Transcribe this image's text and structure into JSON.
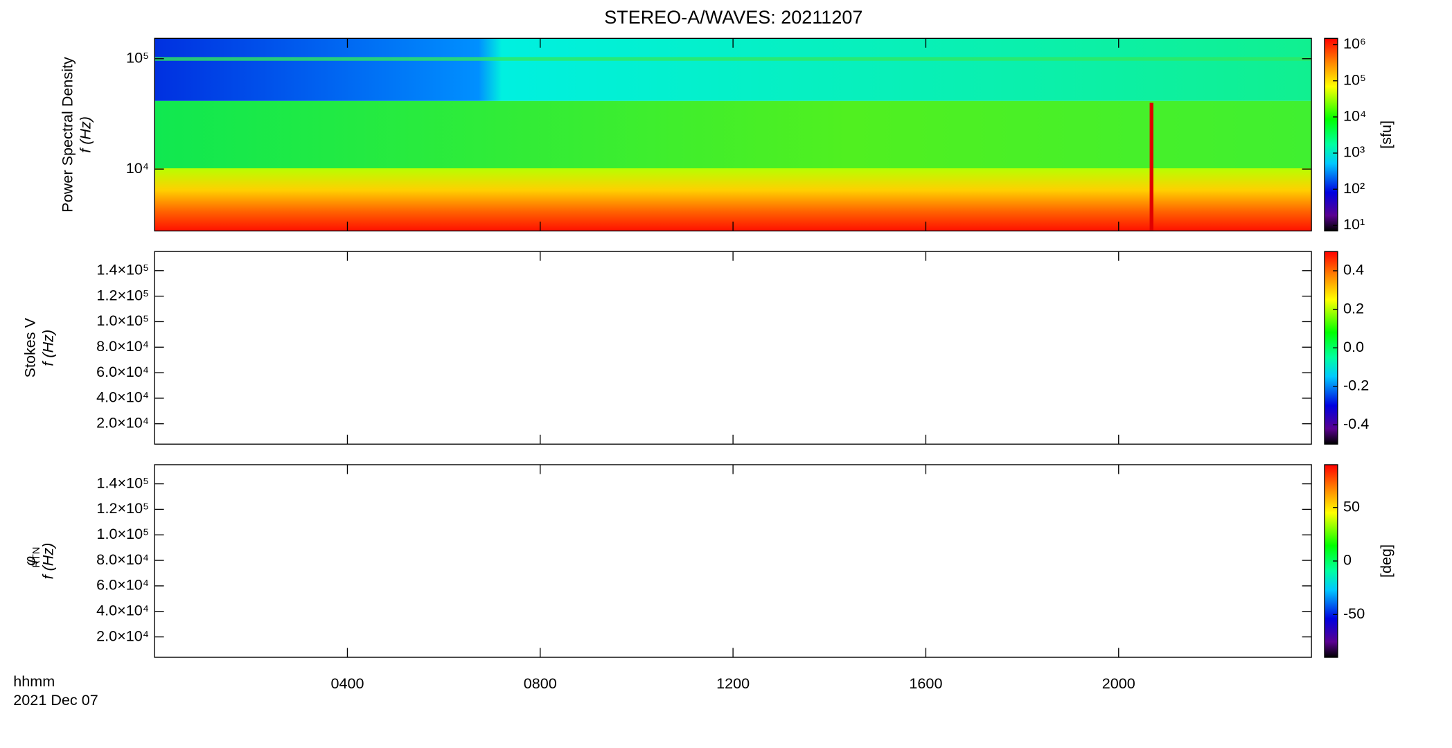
{
  "title": "STEREO-A/WAVES: 20211207",
  "time_axis": {
    "label": "hhmm",
    "date": "2021 Dec 07",
    "xlim": [
      0,
      24
    ],
    "xticks": [
      {
        "value": 4,
        "label": "0400"
      },
      {
        "value": 8,
        "label": "0800"
      },
      {
        "value": 12,
        "label": "1200"
      },
      {
        "value": 16,
        "label": "1600"
      },
      {
        "value": 20,
        "label": "2000"
      }
    ]
  },
  "panels": [
    {
      "ylabel": [
        "Power Spectral Density",
        "f (Hz)"
      ],
      "log": true,
      "ylim": [
        2750,
        153000
      ],
      "yticks": [
        {
          "value": 10000,
          "label": "10⁴"
        },
        {
          "value": 100000,
          "label": "10⁵"
        }
      ],
      "colorbar": {
        "log": true,
        "lim": [
          7,
          1500000
        ],
        "label": "[sfu]",
        "ticks": [
          {
            "value": 10,
            "label": "10¹"
          },
          {
            "value": 100,
            "label": "10²"
          },
          {
            "value": 1000,
            "label": "10³"
          },
          {
            "value": 10000,
            "label": "10⁴"
          },
          {
            "value": 100000,
            "label": "10⁵"
          },
          {
            "value": 1000000,
            "label": "10⁶"
          }
        ]
      }
    },
    {
      "ylabel": [
        "Stokes V",
        "f (Hz)"
      ],
      "log": false,
      "ylim": [
        4000,
        155000
      ],
      "yticks": [
        {
          "value": 20000,
          "label": "2.0×10⁴"
        },
        {
          "value": 40000,
          "label": "4.0×10⁴"
        },
        {
          "value": 60000,
          "label": "6.0×10⁴"
        },
        {
          "value": 80000,
          "label": "8.0×10⁴"
        },
        {
          "value": 100000,
          "label": "1.0×10⁵"
        },
        {
          "value": 120000,
          "label": "1.2×10⁵"
        },
        {
          "value": 140000,
          "label": "1.4×10⁵"
        }
      ],
      "colorbar": {
        "log": false,
        "lim": [
          -0.5,
          0.5
        ],
        "ticks": [
          -0.4,
          {
            "value": -0.2,
            "label": "-0.2"
          },
          {
            "value": 0,
            "label": "0.0"
          },
          0.2,
          0.4
        ]
      }
    },
    {
      "ylabel": [
        "φ",
        "f (Hz)"
      ],
      "ylabel_sub": "RTN",
      "log": false,
      "ylim": [
        4000,
        155000
      ],
      "yticks": [
        {
          "value": 20000,
          "label": "2.0×10⁴"
        },
        {
          "value": 40000,
          "label": "4.0×10⁴"
        },
        {
          "value": 60000,
          "label": "6.0×10⁴"
        },
        {
          "value": 80000,
          "label": "8.0×10⁴"
        },
        {
          "value": 100000,
          "label": "1.0×10⁵"
        },
        {
          "value": 120000,
          "label": "1.2×10⁵"
        },
        {
          "value": 140000,
          "label": "1.4×10⁵"
        }
      ],
      "colorbar": {
        "log": false,
        "lim": [
          -90,
          90
        ],
        "label": "[deg]",
        "ticks": [
          -50,
          0,
          50
        ]
      }
    }
  ]
}
